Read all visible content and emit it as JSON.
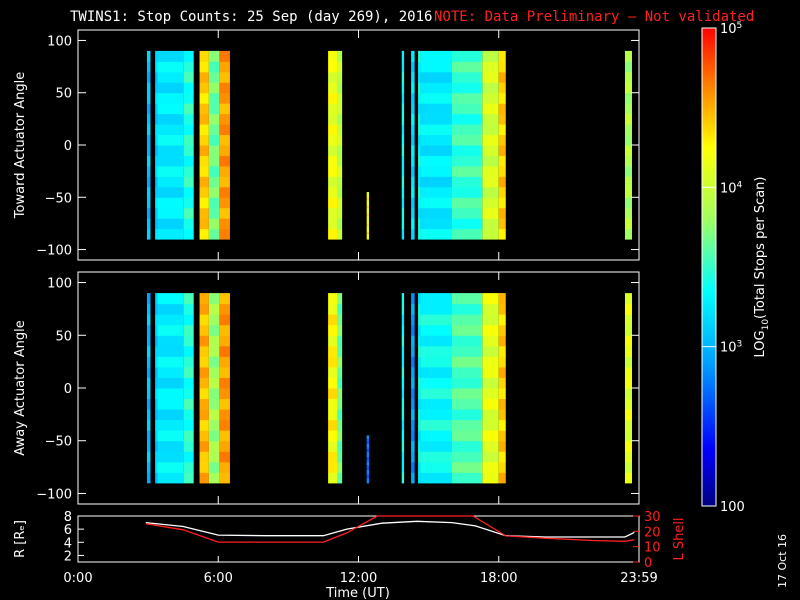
{
  "header": {
    "title": "TWINS1: Stop Counts: 25 Sep (day 269), 2016",
    "note": "NOTE: Data Preliminary – Not validated"
  },
  "footer": {
    "date_stamp": "17 Oct 16"
  },
  "colors": {
    "note": "#ff2020",
    "r_line": "#ffffff",
    "lshell_line": "#ff2020"
  },
  "chart_data": [
    {
      "type": "heatmap",
      "name": "toward",
      "ylabel": "Toward Actuator Angle",
      "ylim": [
        -110,
        110
      ],
      "yticks": [
        100,
        50,
        0,
        -50,
        -100
      ],
      "ytick_labels": [
        "100",
        "50",
        "0",
        "−50",
        "−100"
      ],
      "xlim": [
        0,
        24
      ],
      "value_range": [
        -90,
        90
      ],
      "data_segments": [
        {
          "t0": 2.95,
          "t1": 3.1,
          "level": 0.35
        },
        {
          "t0": 3.3,
          "t1": 3.4,
          "level": 0.38
        },
        {
          "t0": 3.4,
          "t1": 4.5,
          "level": 0.42
        },
        {
          "t0": 4.5,
          "t1": 4.95,
          "level": 0.48
        },
        {
          "t0": 5.2,
          "t1": 5.6,
          "level": 0.8
        },
        {
          "t0": 5.6,
          "t1": 6.05,
          "level": 0.55
        },
        {
          "t0": 6.05,
          "t1": 6.5,
          "level": 0.85
        },
        {
          "t0": 10.7,
          "t1": 11.1,
          "level": 0.72
        },
        {
          "t0": 11.1,
          "t1": 11.3,
          "level": 0.65
        },
        {
          "t0": 12.35,
          "t1": 12.45,
          "level": 0.75,
          "v0": -90,
          "v1": -45
        },
        {
          "t0": 13.85,
          "t1": 13.95,
          "level": 0.45
        },
        {
          "t0": 14.25,
          "t1": 14.4,
          "level": 0.4
        },
        {
          "t0": 14.55,
          "t1": 14.65,
          "level": 0.45
        },
        {
          "t0": 14.65,
          "t1": 16.0,
          "level": 0.42
        },
        {
          "t0": 16.0,
          "t1": 17.3,
          "level": 0.5
        },
        {
          "t0": 17.3,
          "t1": 18.0,
          "level": 0.68
        },
        {
          "t0": 18.0,
          "t1": 18.3,
          "level": 0.8
        },
        {
          "t0": 23.4,
          "t1": 23.7,
          "level": 0.62
        }
      ]
    },
    {
      "type": "heatmap",
      "name": "away",
      "ylabel": "Away Actuator Angle",
      "ylim": [
        -110,
        110
      ],
      "yticks": [
        100,
        50,
        0,
        -50,
        -100
      ],
      "ytick_labels": [
        "100",
        "50",
        "0",
        "−50",
        "−100"
      ],
      "xlim": [
        0,
        24
      ],
      "value_range": [
        -90,
        90
      ],
      "data_segments": [
        {
          "t0": 2.95,
          "t1": 3.1,
          "level": 0.35
        },
        {
          "t0": 3.3,
          "t1": 3.4,
          "level": 0.38
        },
        {
          "t0": 3.4,
          "t1": 4.5,
          "level": 0.42
        },
        {
          "t0": 4.5,
          "t1": 4.95,
          "level": 0.48
        },
        {
          "t0": 5.2,
          "t1": 5.6,
          "level": 0.82
        },
        {
          "t0": 5.6,
          "t1": 6.05,
          "level": 0.6
        },
        {
          "t0": 6.05,
          "t1": 6.5,
          "level": 0.85
        },
        {
          "t0": 10.7,
          "t1": 11.1,
          "level": 0.75
        },
        {
          "t0": 11.1,
          "t1": 11.3,
          "level": 0.55
        },
        {
          "t0": 12.35,
          "t1": 12.45,
          "level": 0.25,
          "v0": -90,
          "v1": -45
        },
        {
          "t0": 13.85,
          "t1": 13.95,
          "level": 0.45
        },
        {
          "t0": 14.25,
          "t1": 14.4,
          "level": 0.3
        },
        {
          "t0": 14.55,
          "t1": 14.65,
          "level": 0.45
        },
        {
          "t0": 14.65,
          "t1": 16.0,
          "level": 0.45
        },
        {
          "t0": 16.0,
          "t1": 17.3,
          "level": 0.52
        },
        {
          "t0": 17.3,
          "t1": 18.0,
          "level": 0.7
        },
        {
          "t0": 18.0,
          "t1": 18.3,
          "level": 0.8
        },
        {
          "t0": 23.4,
          "t1": 23.7,
          "level": 0.7
        }
      ]
    },
    {
      "type": "line",
      "name": "orbit",
      "ylabel": "R [Rₑ]",
      "y2label": "L Shell",
      "ylim": [
        1,
        8
      ],
      "yticks": [
        2,
        4,
        6,
        8
      ],
      "ytick_labels": [
        "2",
        "4",
        "6",
        "8"
      ],
      "y2lim": [
        0,
        30
      ],
      "y2ticks": [
        0,
        10,
        20,
        30
      ],
      "y2tick_labels": [
        "0",
        "10",
        "20",
        "30"
      ],
      "xlim": [
        0,
        24
      ],
      "xticks": [
        0,
        6,
        12,
        18,
        24
      ],
      "xtick_labels": [
        "0:00",
        "6:00",
        "12:00",
        "18:00",
        "23:59"
      ],
      "xlabel": "Time (UT)",
      "series": [
        {
          "name": "R",
          "axis": "left",
          "x": [
            2.9,
            4.5,
            6.0,
            8.0,
            10.5,
            11.5,
            13.0,
            14.5,
            16.0,
            17.0,
            18.3,
            20.0,
            22.0,
            23.4,
            23.8
          ],
          "y": [
            7.0,
            6.4,
            5.1,
            5.0,
            5.0,
            6.0,
            6.9,
            7.2,
            7.0,
            6.5,
            5.0,
            4.8,
            4.8,
            4.8,
            5.5
          ]
        },
        {
          "name": "L Shell",
          "axis": "right",
          "x": [
            2.9,
            4.5,
            6.0,
            8.0,
            10.5,
            11.5,
            12.8,
            16.9,
            18.3,
            20.0,
            22.0,
            23.4,
            23.8
          ],
          "y": [
            25.0,
            21.0,
            13.0,
            13.0,
            13.0,
            19.0,
            30.0,
            30.0,
            17.0,
            15.5,
            14.0,
            13.5,
            14.5
          ]
        }
      ]
    },
    {
      "type": "colorbar",
      "name": "colorbar",
      "label": "LOG10(Total Stops per Scan)",
      "range": [
        100,
        100000
      ],
      "ticks": [
        {
          "value": 100000,
          "label_base": "10",
          "label_exp": "5"
        },
        {
          "value": 10000,
          "label_base": "10",
          "label_exp": "4"
        },
        {
          "value": 1000,
          "label_base": "10",
          "label_exp": "3"
        },
        {
          "value": 100,
          "label_base": "100",
          "label_exp": ""
        }
      ]
    }
  ]
}
